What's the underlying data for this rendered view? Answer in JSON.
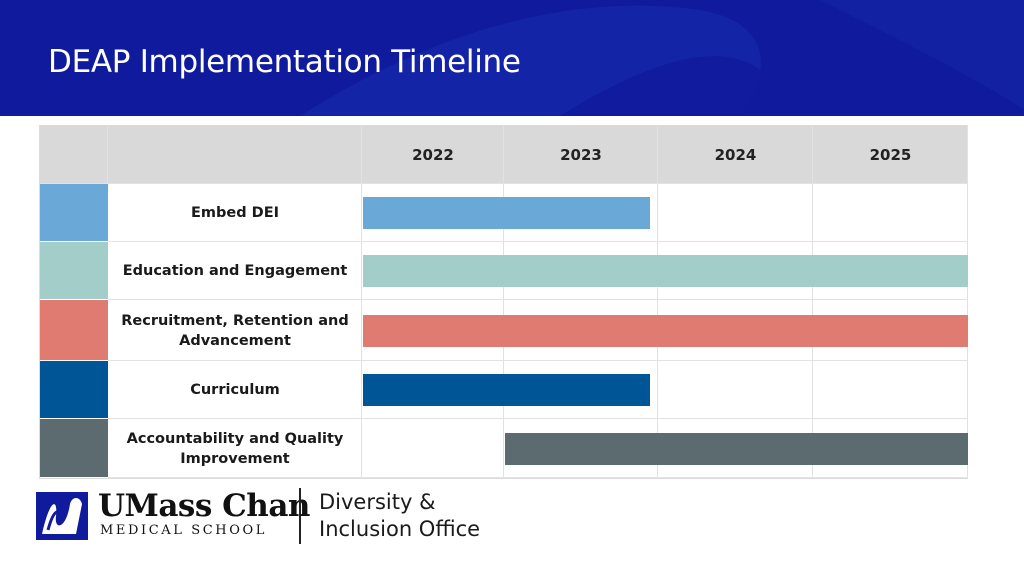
{
  "slide": {
    "title": "DEAP Implementation Timeline",
    "header_color": "#0f1b9c"
  },
  "chart_data": {
    "type": "table",
    "subtype": "gantt",
    "title": "",
    "columns": [
      "2022",
      "2023",
      "2024",
      "2025"
    ],
    "rows": [
      {
        "label": "Embed DEI",
        "color": "#6aa8d8",
        "start": 2022.0,
        "end": 2023.95
      },
      {
        "label": "Education and Engagement",
        "color": "#a2cdc8",
        "start": 2022.0,
        "end": 2026.0
      },
      {
        "label": "Recruitment, Retention and Advancement",
        "color": "#e07b72",
        "start": 2022.0,
        "end": 2026.0
      },
      {
        "label": "Curriculum",
        "color": "#005596",
        "start": 2022.0,
        "end": 2023.95
      },
      {
        "label": "Accountability and Quality Improvement",
        "color": "#5c6b70",
        "start": 2023.0,
        "end": 2026.0
      }
    ]
  },
  "footer": {
    "logo_name": "UMass Chan",
    "logo_sub": "MEDICAL SCHOOL",
    "office_line1": "Diversity &",
    "office_line2": "Inclusion Office",
    "logo_icon": "umass-chan-shield-icon"
  }
}
